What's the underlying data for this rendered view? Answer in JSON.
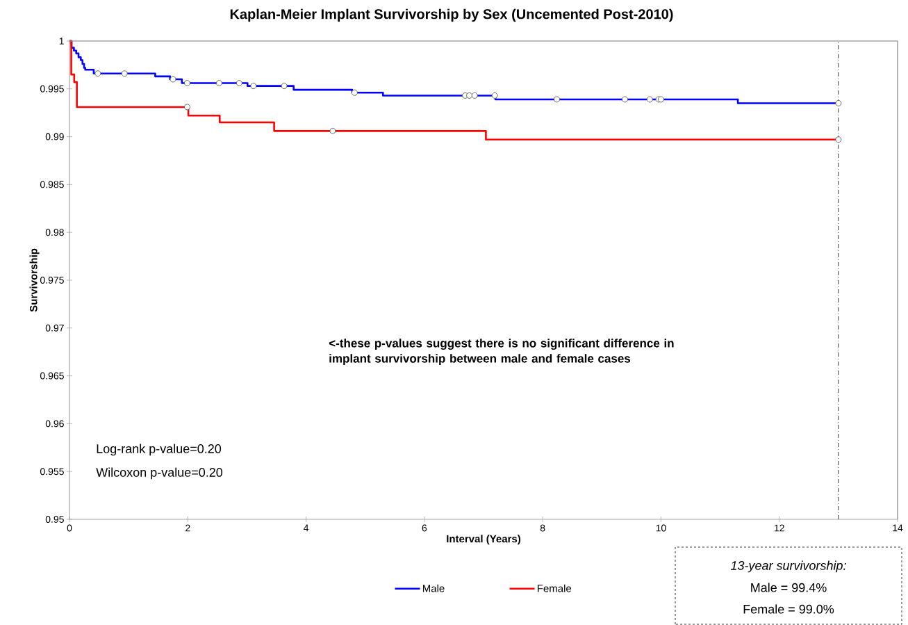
{
  "chart_data": {
    "type": "step",
    "title": "Kaplan-Meier Implant Survivorship by Sex (Uncemented Post-2010)",
    "xlabel": "Interval (Years)",
    "ylabel": "Survivorship",
    "xlim": [
      0,
      14
    ],
    "xticks": [
      0,
      2,
      4,
      6,
      8,
      10,
      12,
      14
    ],
    "ylim": [
      0.95,
      1
    ],
    "yticks": [
      0.95,
      0.955,
      0.96,
      0.965,
      0.97,
      0.975,
      0.98,
      0.985,
      0.99,
      0.995,
      1
    ],
    "grid": false,
    "legend": "bottom",
    "series": [
      {
        "name": "Male",
        "color": "#0000ff",
        "x": [
          0,
          0.036,
          0.075,
          0.114,
          0.153,
          0.192,
          0.22,
          0.247,
          0.266,
          0.41,
          1.45,
          1.7,
          1.9,
          3.01,
          3.79,
          4.78,
          5.3,
          7.2,
          11.3,
          13.0
        ],
        "values": [
          1,
          0.9993,
          0.999,
          0.9987,
          0.9983,
          0.998,
          0.9976,
          0.9972,
          0.997,
          0.9966,
          0.9963,
          0.996,
          0.9956,
          0.9953,
          0.9949,
          0.9946,
          0.9943,
          0.9939,
          0.9935,
          0.9935
        ]
      },
      {
        "name": "Female",
        "color": "#ff0000",
        "x": [
          0,
          0.03,
          0.08,
          0.125,
          2.01,
          2.54,
          3.46,
          7.04,
          13.0
        ],
        "values": [
          1,
          0.9965,
          0.9957,
          0.9931,
          0.9922,
          0.9915,
          0.9906,
          0.9897,
          0.9897
        ]
      },
      {
        "type": "scatter",
        "marker": "circle",
        "color": "#595959",
        "x": [
          0.48,
          0.93,
          1.75,
          1.99,
          2.53,
          2.87,
          3.11,
          3.63,
          4.82,
          6.69,
          6.76,
          6.85,
          7.19,
          8.24,
          9.39,
          9.81,
          9.96,
          10.0,
          13.0
        ],
        "values": [
          0.9966,
          0.9966,
          0.996,
          0.9956,
          0.9956,
          0.9956,
          0.9953,
          0.9953,
          0.9946,
          0.9943,
          0.9943,
          0.9943,
          0.9943,
          0.9939,
          0.9939,
          0.9939,
          0.9939,
          0.9939,
          0.9935
        ]
      },
      {
        "type": "scatter",
        "marker": "circle",
        "color": "#595959",
        "x": [
          1.99,
          4.45,
          13.0
        ],
        "values": [
          0.9931,
          0.9906,
          0.9897
        ]
      }
    ],
    "ref_lines": [
      {
        "axis": "x",
        "value": 13,
        "color": "#000000",
        "line_style": "dashed"
      }
    ],
    "annotations": [
      "<-these p-values suggest there is no significant difference in implant survivorship between male and female cases",
      "Log-rank p-value=0.20",
      "Wilcoxon p-value=0.20",
      "*13-year survivorship:*",
      "Male = 99.4%",
      "Female = 99.0%"
    ]
  }
}
